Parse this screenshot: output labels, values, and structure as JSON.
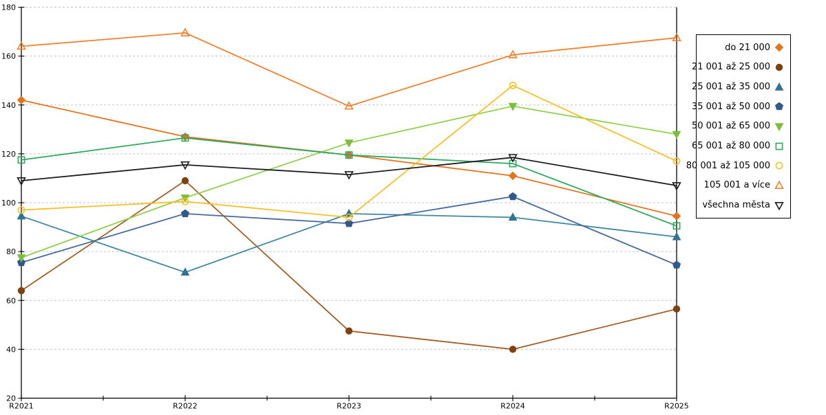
{
  "chart_data": {
    "type": "line",
    "title": "",
    "xlabel": "",
    "ylabel": "",
    "categories": [
      "R2021",
      "R2022",
      "R2023",
      "R2024",
      "R2025"
    ],
    "ylim": [
      20,
      180
    ],
    "ytick_step": 20,
    "grid": "horizontal-dashed",
    "legend_position": "right",
    "series": [
      {
        "name": "do 21 000",
        "marker": "diamond",
        "fill": "filled",
        "color": "#E4731E",
        "values": [
          142,
          127,
          119.5,
          111,
          94.5
        ]
      },
      {
        "name": "21 001 až 25 000",
        "marker": "circle",
        "fill": "filled",
        "color": "#A25E24",
        "marker_color": "#7F4110",
        "values": [
          64,
          109,
          47.5,
          40,
          56.5
        ]
      },
      {
        "name": "25 001 až 35 000",
        "marker": "triangle-up",
        "fill": "filled",
        "color": "#3E87A0",
        "marker_color": "#2F7490",
        "values": [
          94.5,
          71.5,
          95.5,
          94,
          86
        ]
      },
      {
        "name": "35 001 až 50 000",
        "marker": "pentagon",
        "fill": "filled",
        "color": "#47699C",
        "marker_color": "#315A8C",
        "values": [
          75.5,
          95.5,
          91.5,
          102.5,
          74.5
        ]
      },
      {
        "name": "50 001 až 65 000",
        "marker": "triangle-down",
        "fill": "filled",
        "color": "#92D050",
        "marker_color": "#7DBE3C",
        "values": [
          77.5,
          102,
          124.5,
          139.5,
          128
        ]
      },
      {
        "name": "65 001 až 80 000",
        "marker": "square",
        "fill": "open",
        "color": "#2BA85C",
        "values": [
          117.5,
          126.5,
          119.5,
          116,
          90.5
        ]
      },
      {
        "name": "80 001 až 105 000",
        "marker": "circle",
        "fill": "open",
        "color": "#F6C026",
        "values": [
          97,
          100.5,
          94,
          148,
          117
        ]
      },
      {
        "name": "105 001 a více",
        "marker": "triangle-up",
        "fill": "open",
        "color": "#F0812F",
        "values": [
          164,
          169.5,
          139.5,
          160.5,
          167.5
        ]
      },
      {
        "name": "všechna města",
        "marker": "triangle-down",
        "fill": "open",
        "color": "#1C1C1C",
        "values": [
          109,
          115.5,
          111.5,
          118.5,
          107
        ]
      }
    ],
    "colors": {
      "axis": "#000000",
      "grid": "#c3c3c3",
      "background": "#ffffff"
    }
  }
}
